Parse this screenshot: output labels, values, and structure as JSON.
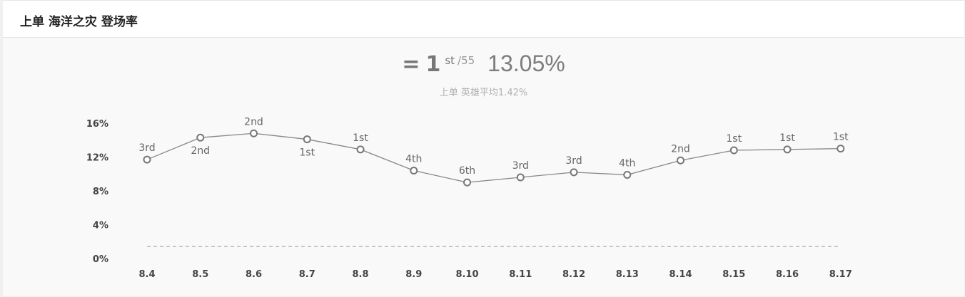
{
  "header": {
    "title": "上单 海洋之灾 登场率"
  },
  "summary": {
    "symbol": "=",
    "rank": "1",
    "rank_suffix": "st",
    "rank_total": "/55",
    "rate": "13.05%"
  },
  "average_text": "上单 英雄平均1.42%",
  "chart_data": {
    "type": "line",
    "title": "",
    "xlabel": "",
    "ylabel": "",
    "categories": [
      "8.4",
      "8.5",
      "8.6",
      "8.7",
      "8.8",
      "8.9",
      "8.10",
      "8.11",
      "8.12",
      "8.13",
      "8.14",
      "8.15",
      "8.16",
      "8.17"
    ],
    "series": [
      {
        "values": [
          11.7,
          14.3,
          14.8,
          14.1,
          12.9,
          10.4,
          9.0,
          9.6,
          10.2,
          9.9,
          11.6,
          12.8,
          12.9,
          13.0
        ],
        "ranks": [
          "3rd",
          "2nd",
          "2nd",
          "1st",
          "1st",
          "4th",
          "6th",
          "3rd",
          "3rd",
          "4th",
          "2nd",
          "1st",
          "1st",
          "1st"
        ],
        "rank_position": [
          "above",
          "below",
          "above",
          "below",
          "above",
          "above",
          "above",
          "above",
          "above",
          "above",
          "above",
          "above",
          "above",
          "above"
        ]
      }
    ],
    "reference_line": {
      "value": 1.42,
      "style": "dashed"
    },
    "y_ticks": [
      "0%",
      "4%",
      "8%",
      "12%",
      "16%"
    ],
    "y_tick_values": [
      0,
      4,
      8,
      12,
      16
    ],
    "ylim": [
      0,
      16
    ],
    "grid": false,
    "colors": {
      "line": "#888888",
      "marker_fill": "#ffffff",
      "marker_stroke": "#777777",
      "reference": "#999999"
    }
  }
}
